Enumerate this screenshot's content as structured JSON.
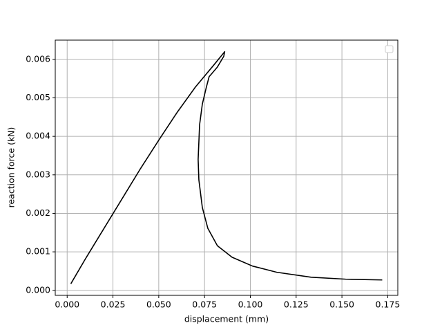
{
  "chart_data": {
    "type": "line",
    "x_label": "displacement (mm)",
    "y_label": "reaction force (kN)",
    "x": [
      0.002,
      0.01,
      0.02,
      0.03,
      0.04,
      0.05,
      0.06,
      0.07,
      0.08,
      0.086,
      0.0855,
      0.082,
      0.0775,
      0.076,
      0.0738,
      0.0723,
      0.0715,
      0.0719,
      0.0738,
      0.0768,
      0.082,
      0.09,
      0.1012,
      0.1144,
      0.1332,
      0.152,
      0.172
    ],
    "series": [
      {
        "color": "#000000",
        "values": [
          0.00017,
          0.00082,
          0.0016,
          0.00238,
          0.00316,
          0.0039,
          0.00462,
          0.00528,
          0.00585,
          0.0062,
          0.00608,
          0.0058,
          0.00555,
          0.00528,
          0.00484,
          0.0043,
          0.0034,
          0.00287,
          0.00215,
          0.00161,
          0.00116,
          0.00086,
          0.00063,
          0.00047,
          0.00034,
          0.00029,
          0.00027
        ]
      }
    ],
    "xlim": [
      -0.0065,
      0.1805
    ],
    "ylim": [
      -0.00013,
      0.0065
    ],
    "xticks": [
      {
        "value": 0,
        "label": "0.000"
      },
      0.025,
      {
        "value": 0.05,
        "label": "0.050"
      },
      0.075,
      {
        "value": 0.1,
        "label": "0.100"
      },
      0.125,
      {
        "value": 0.15,
        "label": "0.150"
      },
      0.175
    ],
    "yticks": [
      {
        "value": 0,
        "label": "0.000"
      },
      0.001,
      0.002,
      0.003,
      0.004,
      0.005,
      0.006
    ],
    "grid": true
  }
}
